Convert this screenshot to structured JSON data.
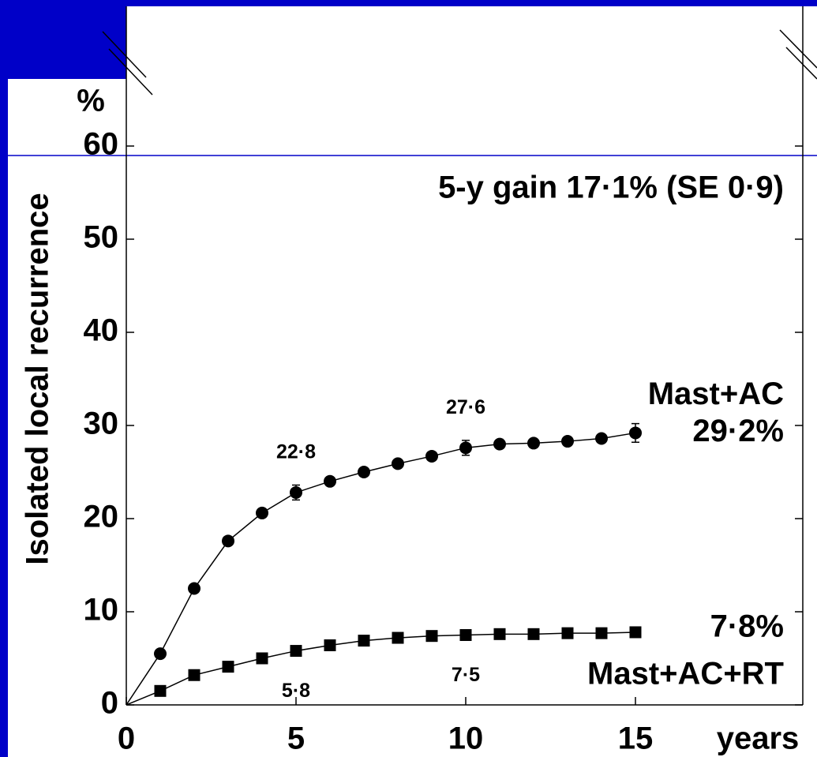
{
  "chart_data": {
    "type": "line",
    "y_label": "Isolated local recurrence",
    "y_unit": "%",
    "x_label": "years",
    "annotation": "5-y gain 17·1% (SE 0·9)",
    "x": [
      1,
      2,
      3,
      4,
      5,
      6,
      7,
      8,
      9,
      10,
      11,
      12,
      13,
      14,
      15
    ],
    "series": [
      {
        "name": "Mast+AC",
        "color": "#000000",
        "marker": "circle",
        "values": [
          5.5,
          12.5,
          17.6,
          20.6,
          22.8,
          24.0,
          25.0,
          25.9,
          26.7,
          27.6,
          28.0,
          28.1,
          28.3,
          28.6,
          29.2
        ],
        "errors": [
          null,
          null,
          null,
          null,
          0.8,
          null,
          null,
          null,
          null,
          0.8,
          null,
          null,
          null,
          null,
          1.0
        ],
        "value_labels": [
          null,
          null,
          null,
          null,
          "22·8",
          null,
          null,
          null,
          null,
          "27·6",
          null,
          null,
          null,
          null,
          "29·2%"
        ]
      },
      {
        "name": "Mast+AC+RT",
        "color": "#000000",
        "marker": "square",
        "values": [
          1.5,
          3.2,
          4.1,
          5.0,
          5.8,
          6.4,
          6.9,
          7.2,
          7.4,
          7.5,
          7.6,
          7.6,
          7.7,
          7.7,
          7.8
        ],
        "value_labels": [
          null,
          null,
          null,
          null,
          "5·8",
          null,
          null,
          null,
          null,
          "7·5",
          null,
          null,
          null,
          null,
          "7·8%"
        ]
      }
    ],
    "xlim": [
      0,
      20
    ],
    "xticks": [
      0,
      5,
      10,
      15
    ],
    "ylim": [
      0,
      75
    ],
    "yticks": [
      0,
      10,
      20,
      30,
      40,
      50,
      60
    ]
  }
}
